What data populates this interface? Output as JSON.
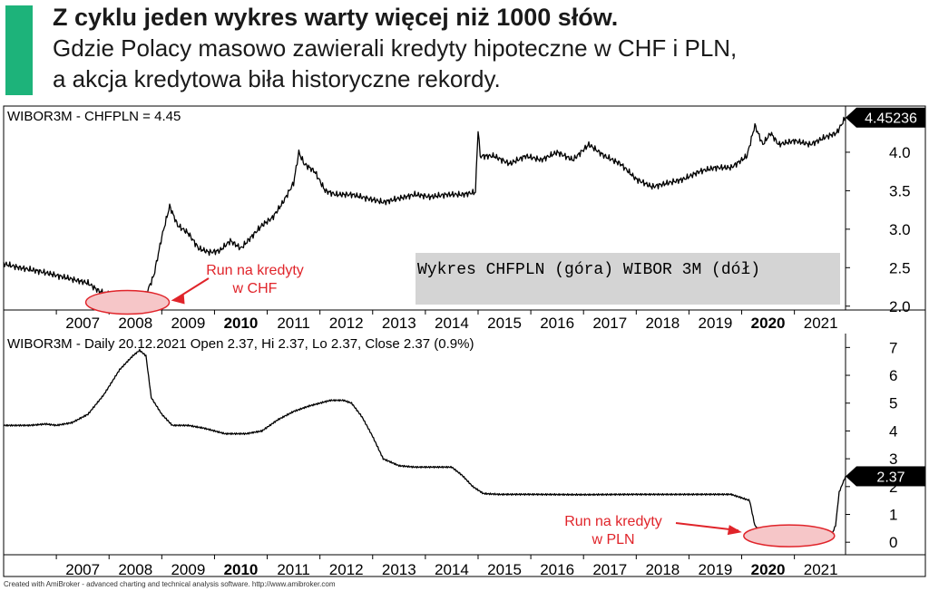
{
  "header": {
    "accent_color": "#1db37a",
    "title": "Z cyklu jeden wykres warty więcej niż 1000 słów.",
    "subtitle_line1": "Gdzie Polacy masowo zawierali kredyty hipoteczne w CHF i PLN,",
    "subtitle_line2": "a akcja kredytowa biła historyczne rekordy."
  },
  "chart_data": [
    {
      "type": "line",
      "title": "WIBOR3M - CHFPLN = 4.45",
      "x_range": [
        2006.0,
        2021.97
      ],
      "ylim": [
        1.95,
        4.6
      ],
      "y_ticks": [
        "2.0",
        "2.5",
        "3.0",
        "3.5",
        "4.0"
      ],
      "y_tick_values": [
        2.0,
        2.5,
        3.0,
        3.5,
        4.0
      ],
      "x_tick_labels": [
        "2007",
        "2008",
        "2009",
        "2010",
        "2011",
        "2012",
        "2013",
        "2014",
        "2015",
        "2016",
        "2017",
        "2018",
        "2019",
        "2020",
        "2021"
      ],
      "bold_x_ticks": [
        "2010",
        "2020"
      ],
      "last_value_label": "4.45236",
      "series": [
        {
          "color": "#000000",
          "x": [
            2006.0,
            2006.3,
            2006.7,
            2007.0,
            2007.3,
            2007.6,
            2007.8,
            2008.0,
            2008.2,
            2008.4,
            2008.55,
            2008.7,
            2008.85,
            2009.0,
            2009.15,
            2009.3,
            2009.5,
            2009.7,
            2009.9,
            2010.1,
            2010.3,
            2010.5,
            2010.7,
            2010.9,
            2011.1,
            2011.3,
            2011.5,
            2011.6,
            2011.7,
            2011.9,
            2012.1,
            2012.3,
            2012.6,
            2012.9,
            2013.2,
            2013.5,
            2013.8,
            2014.1,
            2014.4,
            2014.7,
            2014.95,
            2015.0,
            2015.04,
            2015.3,
            2015.6,
            2015.9,
            2016.2,
            2016.5,
            2016.8,
            2017.1,
            2017.4,
            2017.7,
            2018.0,
            2018.3,
            2018.6,
            2018.9,
            2019.2,
            2019.5,
            2019.8,
            2020.1,
            2020.25,
            2020.4,
            2020.55,
            2020.7,
            2021.0,
            2021.3,
            2021.6,
            2021.8,
            2021.97
          ],
          "values": [
            2.55,
            2.5,
            2.45,
            2.4,
            2.35,
            2.3,
            2.2,
            2.15,
            2.1,
            2.05,
            2.0,
            2.15,
            2.4,
            2.9,
            3.3,
            3.05,
            2.95,
            2.75,
            2.7,
            2.72,
            2.85,
            2.75,
            2.9,
            3.05,
            3.15,
            3.35,
            3.6,
            4.0,
            3.85,
            3.75,
            3.5,
            3.45,
            3.45,
            3.4,
            3.35,
            3.4,
            3.45,
            3.42,
            3.45,
            3.45,
            3.48,
            4.3,
            3.95,
            3.95,
            3.85,
            3.95,
            3.9,
            4.0,
            3.9,
            4.1,
            3.95,
            3.85,
            3.65,
            3.55,
            3.6,
            3.65,
            3.75,
            3.8,
            3.8,
            3.95,
            4.35,
            4.1,
            4.25,
            4.1,
            4.15,
            4.1,
            4.2,
            4.25,
            4.45
          ]
        }
      ]
    },
    {
      "type": "line",
      "title": "WIBOR3M - Daily 20.12.2021 Open 2.37, Hi 2.37, Lo 2.37, Close 2.37 (0.9%)",
      "x_range": [
        2006.0,
        2021.97
      ],
      "ylim": [
        -0.45,
        7.5
      ],
      "y_ticks": [
        "0",
        "1",
        "2",
        "3",
        "4",
        "5",
        "6",
        "7"
      ],
      "y_tick_values": [
        0,
        1,
        2,
        3,
        4,
        5,
        6,
        7
      ],
      "x_tick_labels": [
        "2007",
        "2008",
        "2009",
        "2010",
        "2011",
        "2012",
        "2013",
        "2014",
        "2015",
        "2016",
        "2017",
        "2018",
        "2019",
        "2020",
        "2021"
      ],
      "bold_x_ticks": [
        "2010",
        "2020"
      ],
      "last_value_label": "2.37",
      "series": [
        {
          "color": "#000000",
          "x": [
            2006.0,
            2006.5,
            2006.8,
            2007.0,
            2007.3,
            2007.6,
            2007.9,
            2008.2,
            2008.45,
            2008.58,
            2008.7,
            2008.8,
            2009.0,
            2009.2,
            2009.5,
            2009.8,
            2010.2,
            2010.6,
            2010.9,
            2011.2,
            2011.5,
            2011.8,
            2012.2,
            2012.45,
            2012.6,
            2012.8,
            2013.0,
            2013.2,
            2013.5,
            2013.8,
            2014.2,
            2014.5,
            2014.7,
            2014.9,
            2015.1,
            2015.4,
            2016.0,
            2017.0,
            2018.0,
            2019.0,
            2019.8,
            2020.15,
            2020.25,
            2020.4,
            2020.6,
            2021.0,
            2021.7,
            2021.78,
            2021.85,
            2021.97
          ],
          "values": [
            4.2,
            4.2,
            4.25,
            4.2,
            4.3,
            4.6,
            5.3,
            6.2,
            6.7,
            6.9,
            6.7,
            5.2,
            4.6,
            4.2,
            4.2,
            4.1,
            3.9,
            3.9,
            4.0,
            4.4,
            4.7,
            4.9,
            5.1,
            5.1,
            5.0,
            4.5,
            3.8,
            3.0,
            2.75,
            2.7,
            2.7,
            2.7,
            2.4,
            2.0,
            1.75,
            1.72,
            1.72,
            1.71,
            1.72,
            1.72,
            1.72,
            1.5,
            0.6,
            0.3,
            0.23,
            0.23,
            0.23,
            0.6,
            1.8,
            2.37
          ]
        }
      ]
    }
  ],
  "annotations": {
    "top_note": "Wykres CHFPLN (góra) WIBOR 3M (dół)",
    "chf_callout_line1": "Run na kredyty",
    "chf_callout_line2": "w CHF",
    "pln_callout_line1": "Run na kredyty",
    "pln_callout_line2": "w PLN",
    "callout_color": "#e0242a",
    "ellipse_fill": "#f6c6c8"
  },
  "footer": "Created with AmiBroker - advanced charting and technical analysis software. http://www.amibroker.com"
}
